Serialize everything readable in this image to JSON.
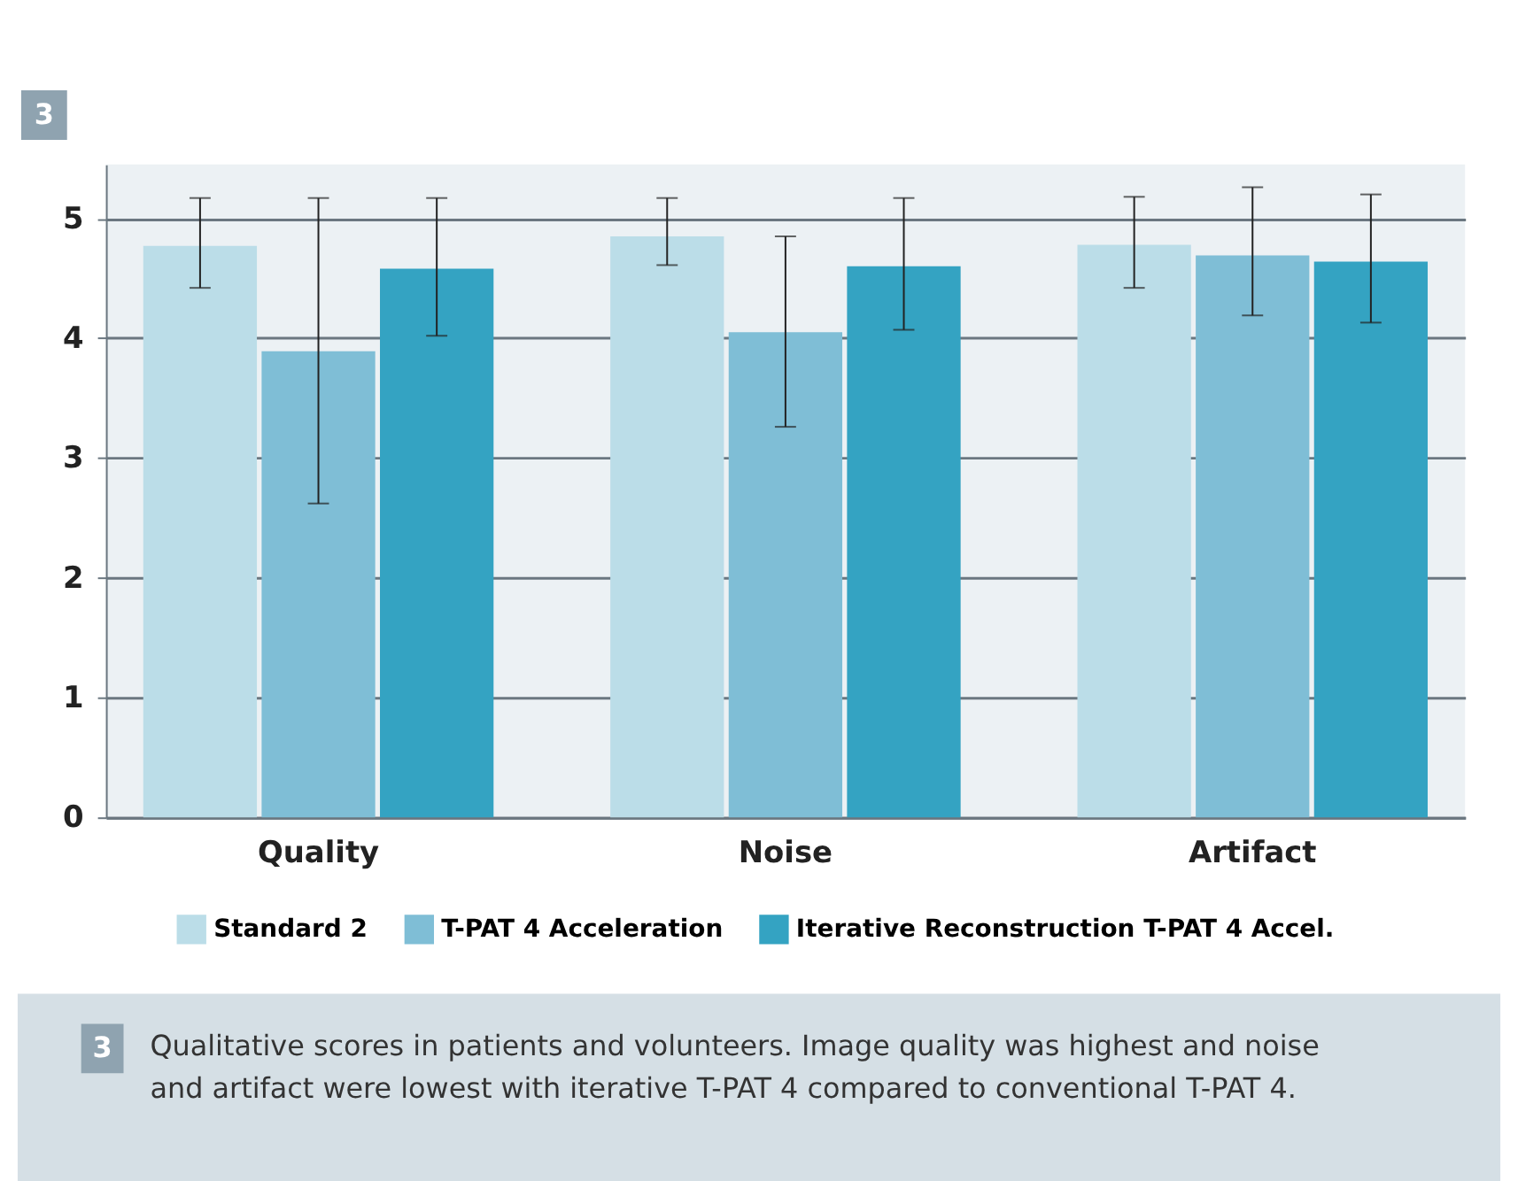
{
  "chart_data": {
    "type": "bar",
    "title": "3",
    "categories": [
      "Quality",
      "Noise",
      "Artifact"
    ],
    "series": [
      {
        "name": "Standard 2",
        "color": "#bbdde8",
        "values": [
          4.77,
          4.85,
          4.78
        ],
        "errors": [
          [
            4.42,
            5.17
          ],
          [
            4.61,
            5.17
          ],
          [
            4.42,
            5.18
          ]
        ]
      },
      {
        "name": "T-PAT 4 Acceleration",
        "color": "#7fbed6",
        "values": [
          3.89,
          4.05,
          4.69
        ],
        "errors": [
          [
            2.62,
            5.17
          ],
          [
            3.26,
            4.85
          ],
          [
            4.19,
            5.26
          ]
        ]
      },
      {
        "name": "Iterative Reconstruction T-PAT 4 Accel.",
        "color": "#34a3c2",
        "values": [
          4.58,
          4.6,
          4.64
        ],
        "errors": [
          [
            4.02,
            5.17
          ],
          [
            4.07,
            5.17
          ],
          [
            4.13,
            5.2
          ]
        ]
      }
    ],
    "ylim": [
      0,
      5.45
    ],
    "yticks": [
      0,
      1,
      2,
      3,
      4,
      5
    ],
    "grid": "y",
    "legend": "bottom",
    "annotations": [
      "3",
      "Qualitative scores in patients and volunteers. Image quality was highest and noise and artifact were lowest with iterative T-PAT 4 compared to conventional T-PAT 4."
    ]
  }
}
